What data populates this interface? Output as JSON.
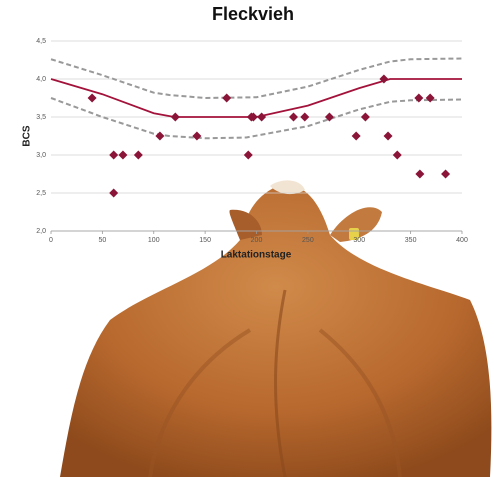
{
  "chart_data": {
    "type": "scatter",
    "title": "Fleckvieh",
    "x_label": "Laktationstage",
    "y_label": "BCS",
    "xlim": [
      0,
      400
    ],
    "xticks": [
      0,
      50,
      100,
      150,
      200,
      250,
      300,
      350,
      400
    ],
    "ylim": [
      2,
      4.5
    ],
    "yticks": [
      {
        "value": 2,
        "label": "2,0"
      },
      {
        "value": 2.5,
        "label": "2,5"
      },
      {
        "value": 3,
        "label": "3,0"
      },
      {
        "value": 3.5,
        "label": "3,5"
      },
      {
        "value": 4,
        "label": "4,0"
      },
      {
        "value": 4.5,
        "label": "4,5"
      }
    ],
    "grid": true,
    "series": [
      {
        "type": "line",
        "color": "#999999",
        "dashed": true,
        "x": [
          0,
          50,
          100,
          115,
          150,
          200,
          250,
          300,
          330,
          350,
          400
        ],
        "values": [
          4.26,
          4.05,
          3.82,
          3.79,
          3.75,
          3.76,
          3.9,
          4.12,
          4.23,
          4.26,
          4.27
        ]
      },
      {
        "type": "line",
        "color": "#999999",
        "dashed": true,
        "x": [
          0,
          50,
          100,
          115,
          150,
          190,
          250,
          300,
          330,
          350,
          400
        ],
        "values": [
          3.75,
          3.5,
          3.28,
          3.25,
          3.22,
          3.23,
          3.38,
          3.6,
          3.7,
          3.72,
          3.73
        ]
      },
      {
        "type": "line",
        "color": "#a3123a",
        "dashed": false,
        "x": [
          0,
          50,
          100,
          120,
          200,
          250,
          300,
          330,
          400
        ],
        "values": [
          4.0,
          3.8,
          3.55,
          3.5,
          3.5,
          3.65,
          3.88,
          4.0,
          4.0
        ]
      },
      {
        "type": "scatter",
        "color": "#8b1538",
        "x": [
          40,
          61,
          61,
          70,
          85,
          106,
          121,
          142,
          171,
          192,
          195,
          197,
          205,
          236,
          247,
          271,
          297,
          306,
          324,
          328,
          337,
          358,
          369,
          359,
          384
        ],
        "values": [
          3.75,
          2.5,
          3.0,
          3.0,
          3.0,
          3.25,
          3.5,
          3.25,
          3.75,
          3.0,
          3.5,
          3.5,
          3.5,
          3.5,
          3.5,
          3.5,
          3.25,
          3.5,
          4.0,
          3.25,
          3.0,
          3.75,
          3.75,
          2.75,
          2.75
        ]
      }
    ]
  }
}
